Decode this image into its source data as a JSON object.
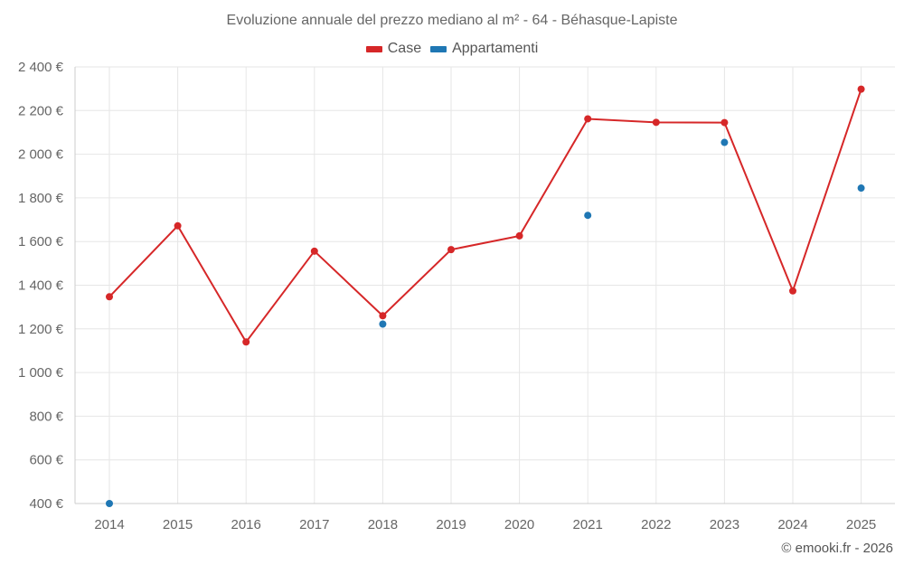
{
  "chart_data": {
    "type": "line",
    "title": "Evoluzione annuale del prezzo mediano al m² - 64 - Béhasque-Lapiste",
    "categories": [
      "2014",
      "2015",
      "2016",
      "2017",
      "2018",
      "2019",
      "2020",
      "2021",
      "2022",
      "2023",
      "2024",
      "2025"
    ],
    "series": [
      {
        "name": "Case",
        "color": "#d62728",
        "style": "line-markers",
        "values": [
          1347,
          1672,
          1140,
          1556,
          1260,
          1563,
          1626,
          2162,
          2146,
          2145,
          1374,
          2298
        ]
      },
      {
        "name": "Appartamenti",
        "color": "#1f77b4",
        "style": "markers",
        "values": [
          400,
          null,
          null,
          null,
          1222,
          null,
          null,
          1720,
          null,
          2054,
          null,
          1845
        ]
      }
    ],
    "ylim": [
      400,
      2400
    ],
    "yticks": [
      400,
      600,
      800,
      1000,
      1200,
      1400,
      1600,
      1800,
      2000,
      2200,
      2400
    ],
    "ytick_labels": [
      "400 €",
      "600 €",
      "800 €",
      "1 000 €",
      "1 200 €",
      "1 400 €",
      "1 600 €",
      "1 800 €",
      "2 000 €",
      "2 200 €",
      "2 400 €"
    ],
    "xlabel": "",
    "ylabel": "",
    "grid": true,
    "legend_position": "top-center"
  },
  "credit": "© emooki.fr - 2026"
}
